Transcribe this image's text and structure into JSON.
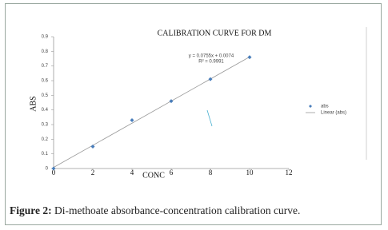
{
  "chart_data": {
    "type": "scatter",
    "title": "CALIBRATION CURVE  FOR DM",
    "xlabel": "CONC",
    "ylabel": "ABS",
    "xlim": [
      0,
      12
    ],
    "xticks": [
      0,
      2,
      4,
      6,
      8,
      10,
      12
    ],
    "ylim": [
      0,
      0.9
    ],
    "yticks": [
      0,
      0.1,
      0.2,
      0.3,
      0.4,
      0.5,
      0.6,
      0.7,
      0.8,
      0.9
    ],
    "series": [
      {
        "name": "abs",
        "color": "#4a7ebb",
        "x": [
          0,
          2,
          4,
          6,
          8,
          10
        ],
        "values": [
          0,
          0.15,
          0.33,
          0.46,
          0.61,
          0.76
        ]
      }
    ],
    "trendline": {
      "name": "Linear (abs)",
      "color": "#9a9a9a",
      "x": [
        0,
        10
      ],
      "values": [
        0.0074,
        0.7624
      ]
    },
    "annotations": [
      "y = 0.0755x + 0.0074",
      "R² = 0.9991"
    ],
    "legend": "right"
  },
  "caption_label": "Figure 2:",
  "caption": "Di-methoate absorbance-concentration calibration curve."
}
